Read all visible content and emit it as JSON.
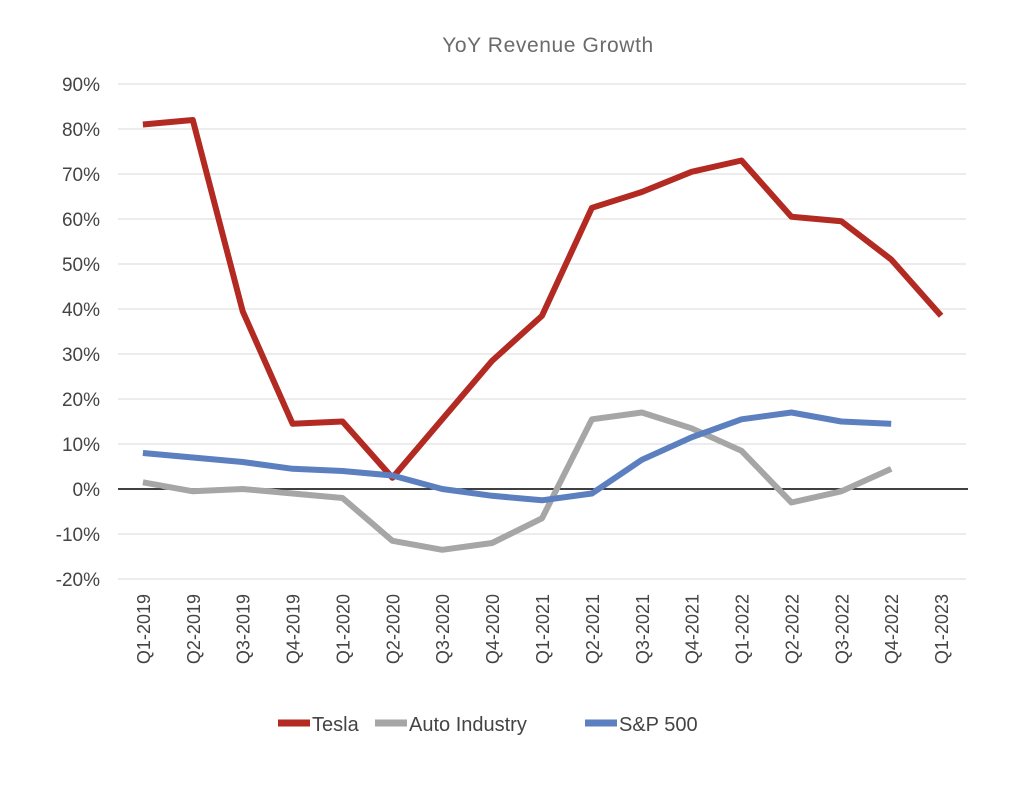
{
  "chart_data": {
    "type": "line",
    "title": "YoY Revenue Growth",
    "xlabel": "",
    "ylabel": "",
    "ylim": [
      -20,
      90
    ],
    "ytick_step": 10,
    "grid": true,
    "legend_position": "bottom",
    "categories": [
      "Q1-2019",
      "Q2-2019",
      "Q3-2019",
      "Q4-2019",
      "Q1-2020",
      "Q2-2020",
      "Q3-2020",
      "Q4-2020",
      "Q1-2021",
      "Q2-2021",
      "Q3-2021",
      "Q4-2021",
      "Q1-2022",
      "Q2-2022",
      "Q3-2022",
      "Q4-2022",
      "Q1-2023"
    ],
    "series": [
      {
        "name": "Tesla",
        "color": "#b22a22",
        "values": [
          81,
          82,
          39.5,
          14.5,
          15,
          2.5,
          15.5,
          28.5,
          38.5,
          62.5,
          66,
          70.5,
          73,
          60.5,
          59.5,
          51,
          38.5
        ]
      },
      {
        "name": "Auto Industry",
        "color": "#a6a6a6",
        "values": [
          1.5,
          -0.5,
          0,
          -1,
          -2,
          -11.5,
          -13.5,
          -12,
          -6.5,
          15.5,
          17,
          13.5,
          8.5,
          -3,
          -0.5,
          4.5,
          null
        ]
      },
      {
        "name": "S&P 500",
        "color": "#5b7fbf",
        "values": [
          8,
          7,
          6,
          4.5,
          4,
          3,
          0,
          -1.5,
          -2.5,
          -1,
          6.5,
          11.5,
          15.5,
          17,
          15,
          14.5,
          null
        ]
      }
    ]
  }
}
